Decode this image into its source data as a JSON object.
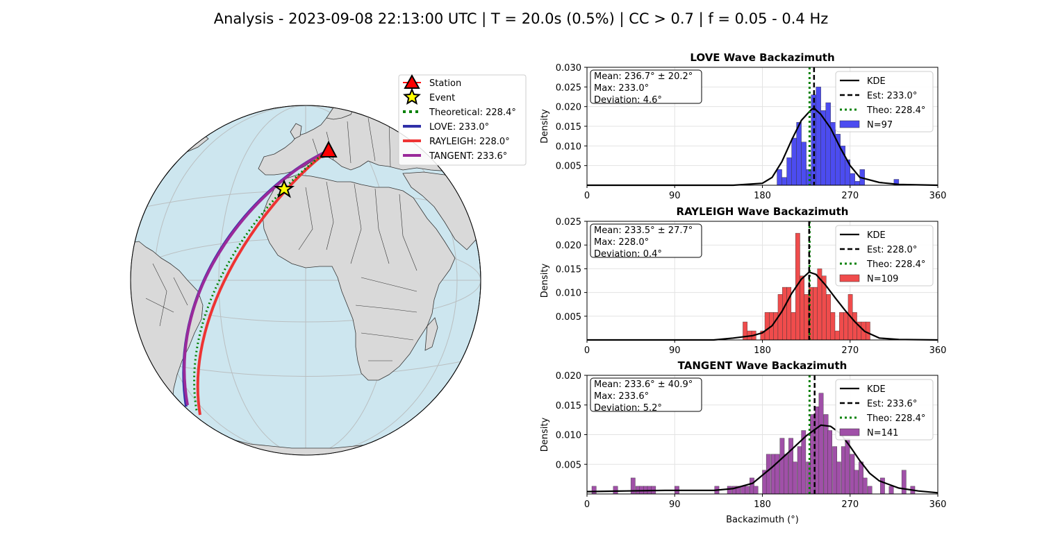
{
  "figure": {
    "title": "Analysis - 2023-09-08 22:13:00 UTC | T = 20.0s (0.5%) | CC > 0.7 | f = 0.05 - 0.4 Hz"
  },
  "map": {
    "legend": [
      {
        "label": "Station",
        "kind": "triangle",
        "color": "#ff0000"
      },
      {
        "label": "Event",
        "kind": "star",
        "color": "#ffff00"
      },
      {
        "label": "Theoretical: 228.4°",
        "kind": "dotted",
        "color": "#008000"
      },
      {
        "label": "LOVE: 233.0°",
        "kind": "line",
        "color": "#3030a8"
      },
      {
        "label": "RAYLEIGH: 228.0°",
        "kind": "line",
        "color": "#ee3333"
      },
      {
        "label": "TANGENT: 233.6°",
        "kind": "line",
        "color": "#9a2a9a"
      }
    ],
    "colors": {
      "ocean": "#cde6ef",
      "land": "#d9d9d9",
      "border": "#333333"
    }
  },
  "chart_data": [
    {
      "type": "bar",
      "title": "LOVE Wave Backazimuth",
      "ylabel": "Density",
      "xlabel": "",
      "xlim": [
        0,
        360
      ],
      "ylim": [
        0,
        0.03
      ],
      "xticks": [
        "0",
        "90",
        "180",
        "270",
        "360"
      ],
      "yticks": [
        {
          "v": 0.005,
          "label": "0.005"
        },
        {
          "v": 0.01,
          "label": "0.010"
        },
        {
          "v": 0.015,
          "label": "0.015"
        },
        {
          "v": 0.02,
          "label": "0.020"
        },
        {
          "v": 0.025,
          "label": "0.025"
        },
        {
          "v": 0.03,
          "label": "0.030"
        }
      ],
      "stats": [
        "Mean: 236.7° ± 20.2°",
        "Max: 233.0°",
        "Deviation: 4.6°"
      ],
      "bar_color": "#4c4cf0",
      "hist_bin_start": 195,
      "hist_bin_width": 5,
      "hist_values": [
        0.004,
        0.002,
        0.007,
        0.012,
        0.016,
        0.011,
        0.004,
        0.023,
        0.025,
        0.019,
        0.021,
        0.016,
        0.013,
        0.01,
        0.0065,
        0.003,
        0.001,
        0.004,
        0,
        0,
        0,
        0,
        0,
        0,
        0.0015
      ],
      "kde_x": [
        0,
        150,
        180,
        190,
        200,
        210,
        220,
        230,
        233,
        240,
        250,
        260,
        270,
        280,
        300,
        320,
        360
      ],
      "kde_y": [
        0,
        0,
        0.0005,
        0.002,
        0.006,
        0.0115,
        0.0165,
        0.0192,
        0.0196,
        0.018,
        0.0145,
        0.0095,
        0.005,
        0.002,
        0.0007,
        0.0002,
        0
      ],
      "est": 233.0,
      "theo": 228.4,
      "legend": [
        "KDE",
        "Est: 233.0°",
        "Theo: 228.4°",
        "N=97"
      ]
    },
    {
      "type": "bar",
      "title": "RAYLEIGH Wave Backazimuth",
      "ylabel": "Density",
      "xlabel": "",
      "xlim": [
        0,
        360
      ],
      "ylim": [
        0,
        0.025
      ],
      "xticks": [
        "0",
        "90",
        "180",
        "270",
        "360"
      ],
      "yticks": [
        {
          "v": 0.005,
          "label": "0.005"
        },
        {
          "v": 0.01,
          "label": "0.010"
        },
        {
          "v": 0.015,
          "label": "0.015"
        },
        {
          "v": 0.02,
          "label": "0.020"
        },
        {
          "v": 0.025,
          "label": "0.025"
        }
      ],
      "stats": [
        "Mean: 233.5° ± 27.7°",
        "Max: 228.0°",
        "Deviation: 0.4°"
      ],
      "bar_color": "#f04c4c",
      "hist_bin_start": 160,
      "hist_bin_width": 4.5,
      "hist_values": [
        0.0038,
        0.0019,
        0.0019,
        0,
        0.0019,
        0.0058,
        0.0058,
        0.0058,
        0.0096,
        0.0111,
        0.0111,
        0.0058,
        0.0225,
        0.0135,
        0.0096,
        0.0111,
        0.0111,
        0.015,
        0.0135,
        0.0096,
        0.0058,
        0.0019,
        0.0058,
        0.0058,
        0.0096,
        0.0058,
        0.0038,
        0.0038,
        0.0038
      ],
      "kde_x": [
        0,
        130,
        150,
        170,
        180,
        190,
        200,
        210,
        220,
        228,
        235,
        245,
        255,
        265,
        275,
        285,
        300,
        320,
        360
      ],
      "kde_y": [
        0,
        0,
        0.0004,
        0.0009,
        0.0015,
        0.003,
        0.006,
        0.0098,
        0.0128,
        0.0143,
        0.0138,
        0.0115,
        0.0088,
        0.0062,
        0.0038,
        0.0018,
        0.0004,
        0.0001,
        0
      ],
      "est": 228.0,
      "theo": 228.4,
      "legend": [
        "KDE",
        "Est: 228.0°",
        "Theo: 228.4°",
        "N=109"
      ]
    },
    {
      "type": "bar",
      "title": "TANGENT Wave Backazimuth",
      "ylabel": "Density",
      "xlabel": "Backazimuth (°)",
      "xlim": [
        0,
        360
      ],
      "ylim": [
        0,
        0.02
      ],
      "xticks": [
        "0",
        "90",
        "180",
        "270",
        "360"
      ],
      "yticks": [
        {
          "v": 0.005,
          "label": "0.005"
        },
        {
          "v": 0.01,
          "label": "0.010"
        },
        {
          "v": 0.015,
          "label": "0.015"
        },
        {
          "v": 0.02,
          "label": "0.020"
        }
      ],
      "stats": [
        "Mean: 233.6° ± 40.9°",
        "Max: 233.6°",
        "Deviation: 5.2°"
      ],
      "bar_color": "#a050a8",
      "hist_bin_start": 5,
      "hist_bin_width": 4.5,
      "hist_sparse": [
        [
          5,
          0.0013
        ],
        [
          27,
          0.0013
        ],
        [
          45,
          0.0027
        ],
        [
          50,
          0.0013
        ],
        [
          54,
          0.0013
        ],
        [
          58,
          0.0013
        ],
        [
          62,
          0.0013
        ],
        [
          66,
          0.0013
        ],
        [
          90,
          0.0013
        ],
        [
          131,
          0.0013
        ],
        [
          144,
          0.0013
        ],
        [
          149,
          0.0013
        ],
        [
          153,
          0.0013
        ],
        [
          158,
          0.0013
        ],
        [
          162,
          0.0013
        ],
        [
          167,
          0.0027
        ],
        [
          171,
          0.0013
        ],
        [
          180,
          0.004
        ],
        [
          184,
          0.0067
        ],
        [
          189,
          0.0067
        ],
        [
          193,
          0.0067
        ],
        [
          198,
          0.0094
        ],
        [
          202,
          0.0067
        ],
        [
          207,
          0.0094
        ],
        [
          211,
          0.0054
        ],
        [
          216,
          0.008
        ],
        [
          220,
          0.0107
        ],
        [
          225,
          0.0054
        ],
        [
          229,
          0.0134
        ],
        [
          234,
          0.0147
        ],
        [
          238,
          0.017
        ],
        [
          243,
          0.0134
        ],
        [
          247,
          0.0107
        ],
        [
          252,
          0.008
        ],
        [
          256,
          0.0054
        ],
        [
          261,
          0.008
        ],
        [
          265,
          0.0094
        ],
        [
          270,
          0.0067
        ],
        [
          274,
          0.004
        ],
        [
          279,
          0.0054
        ],
        [
          283,
          0.0027
        ],
        [
          288,
          0.0013
        ],
        [
          301,
          0.0027
        ],
        [
          310,
          0.0013
        ],
        [
          323,
          0.004
        ],
        [
          332,
          0.0013
        ]
      ],
      "kde_x": [
        0,
        40,
        80,
        100,
        130,
        150,
        170,
        190,
        210,
        225,
        240,
        250,
        260,
        270,
        280,
        290,
        300,
        320,
        340,
        360
      ],
      "kde_y": [
        0.0004,
        0.0005,
        0.0006,
        0.0006,
        0.0006,
        0.0009,
        0.0018,
        0.0045,
        0.0075,
        0.0098,
        0.0116,
        0.0114,
        0.0102,
        0.008,
        0.0056,
        0.0035,
        0.0022,
        0.001,
        0.0005,
        0.0002
      ],
      "est": 233.6,
      "theo": 228.4,
      "legend": [
        "KDE",
        "Est: 233.6°",
        "Theo: 228.4°",
        "N=141"
      ]
    }
  ]
}
